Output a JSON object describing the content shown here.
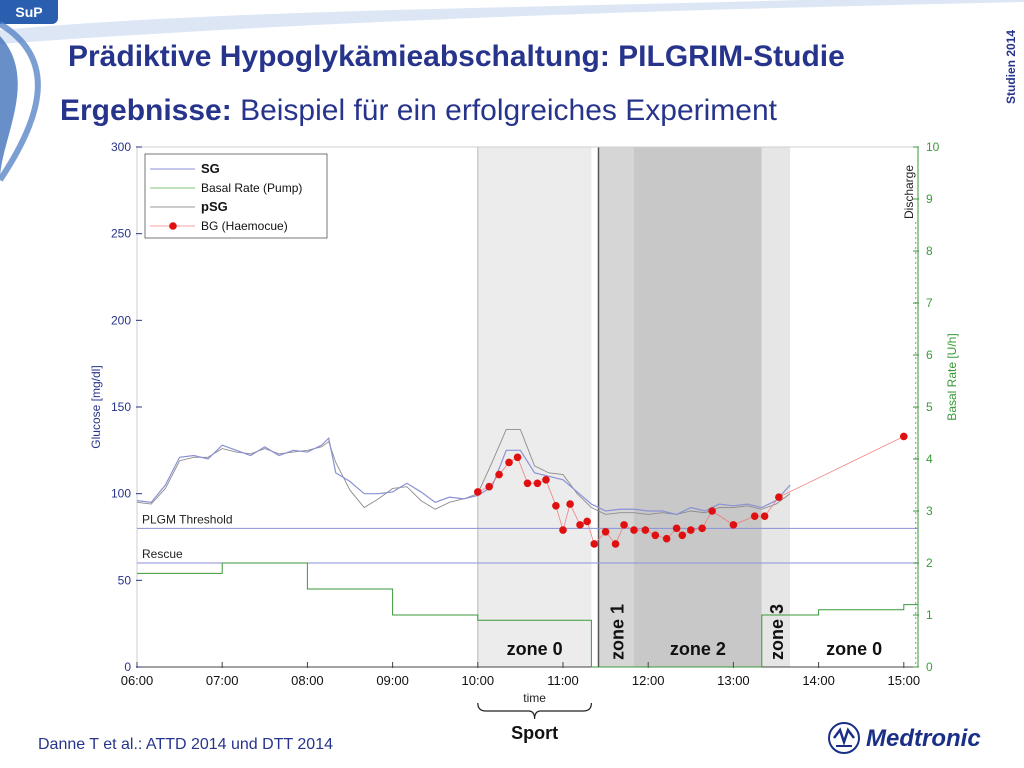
{
  "badge": "SuP",
  "title": "Prädiktive Hypoglykämieabschaltung: PILGRIM-Studie",
  "subtitle_bold": "Ergebnisse:",
  "subtitle_rest": " Beispiel für ein erfolgreiches Experiment",
  "side_label": "Studien 2014",
  "citation": "Danne T et al.: ATTD 2014 und DTT 2014",
  "logo_text": "Medtronic",
  "chart_data": {
    "type": "line",
    "x_unit": "time (hh:mm)",
    "xlabel": "time",
    "ylabel": "Glucose [mg/dl]",
    "y2label": "Basal Rate [U/h]",
    "ylim": [
      0,
      300
    ],
    "y2lim": [
      0,
      10
    ],
    "xlim": [
      "06:00",
      "15:10"
    ],
    "x_ticks": [
      "06:00",
      "07:00",
      "08:00",
      "09:00",
      "10:00",
      "11:00",
      "12:00",
      "13:00",
      "14:00",
      "15:00"
    ],
    "y_ticks": [
      "0",
      "50",
      "100",
      "150",
      "200",
      "250",
      "300"
    ],
    "y2_ticks": [
      "0",
      "1",
      "2",
      "3",
      "4",
      "5",
      "6",
      "7",
      "8",
      "9",
      "10"
    ],
    "legend": [
      {
        "label": "SG",
        "color": "#8a92d6",
        "style": "line",
        "bold": true
      },
      {
        "label": "Basal Rate (Pump)",
        "color": "#7fc47f",
        "style": "line",
        "bold": false
      },
      {
        "label": "pSG",
        "color": "#9a9a9a",
        "style": "line",
        "bold": true
      },
      {
        "label": "BG (Haemocue)",
        "color": "#e01010",
        "style": "marker",
        "bold": false
      }
    ],
    "legend_position": "top-left",
    "colors": {
      "sg": "#8a92d6",
      "psg": "#8c8c8c",
      "basal": "#3a9a3a",
      "bg": "#e01010",
      "threshold": "#8a92d6"
    },
    "thresholds": [
      {
        "label": "PLGM Threshold",
        "value": 80
      },
      {
        "label": "Rescue",
        "value": 60
      }
    ],
    "zones": [
      {
        "label": "zone 0",
        "start": "10:00",
        "end": "11:20",
        "shade": "#ececec",
        "vertical": false
      },
      {
        "label": "zone 1",
        "start": "11:25",
        "end": "11:50",
        "shade": "#d6d6d6",
        "vertical": true
      },
      {
        "label": "zone 2",
        "start": "11:50",
        "end": "13:20",
        "shade": "#c8c8c8",
        "vertical": false
      },
      {
        "label": "zone 3",
        "start": "13:20",
        "end": "13:40",
        "shade": "#e6e6e6",
        "vertical": true
      },
      {
        "label": "zone 0",
        "start": "13:40",
        "end": "15:10",
        "shade": "#ffffff",
        "vertical": false
      }
    ],
    "sport": {
      "label": "Sport",
      "start": "10:00",
      "end": "11:20"
    },
    "discharge": {
      "label": "Discharge",
      "x": "15:00"
    },
    "series": [
      {
        "name": "SG",
        "points": [
          [
            "06:00",
            96
          ],
          [
            "06:10",
            95
          ],
          [
            "06:20",
            105
          ],
          [
            "06:30",
            121
          ],
          [
            "06:40",
            122
          ],
          [
            "06:50",
            120
          ],
          [
            "07:00",
            128
          ],
          [
            "07:10",
            125
          ],
          [
            "07:20",
            122
          ],
          [
            "07:30",
            127
          ],
          [
            "07:40",
            122
          ],
          [
            "07:50",
            125
          ],
          [
            "08:00",
            124
          ],
          [
            "08:10",
            128
          ],
          [
            "08:15",
            132
          ],
          [
            "08:20",
            112
          ],
          [
            "08:30",
            107
          ],
          [
            "08:40",
            100
          ],
          [
            "08:50",
            100
          ],
          [
            "09:00",
            101
          ],
          [
            "09:10",
            106
          ],
          [
            "09:20",
            101
          ],
          [
            "09:30",
            95
          ],
          [
            "09:40",
            98
          ],
          [
            "09:50",
            97
          ],
          [
            "10:00",
            99
          ],
          [
            "10:10",
            104
          ],
          [
            "10:20",
            125
          ],
          [
            "10:30",
            125
          ],
          [
            "10:40",
            112
          ],
          [
            "10:50",
            110
          ],
          [
            "11:00",
            108
          ],
          [
            "11:10",
            101
          ],
          [
            "11:20",
            94
          ],
          [
            "11:30",
            90
          ],
          [
            "11:40",
            91
          ],
          [
            "11:50",
            91
          ],
          [
            "12:00",
            90
          ],
          [
            "12:10",
            90
          ],
          [
            "12:20",
            88
          ],
          [
            "12:30",
            92
          ],
          [
            "12:40",
            90
          ],
          [
            "12:50",
            94
          ],
          [
            "13:00",
            93
          ],
          [
            "13:10",
            94
          ],
          [
            "13:20",
            92
          ],
          [
            "13:30",
            96
          ],
          [
            "13:40",
            105
          ]
        ]
      },
      {
        "name": "pSG",
        "points": [
          [
            "06:00",
            95
          ],
          [
            "06:10",
            94
          ],
          [
            "06:20",
            103
          ],
          [
            "06:30",
            119
          ],
          [
            "06:40",
            121
          ],
          [
            "06:50",
            121
          ],
          [
            "07:00",
            126
          ],
          [
            "07:10",
            124
          ],
          [
            "07:20",
            123
          ],
          [
            "07:30",
            126
          ],
          [
            "07:40",
            123
          ],
          [
            "07:50",
            124
          ],
          [
            "08:00",
            125
          ],
          [
            "08:10",
            127
          ],
          [
            "08:15",
            130
          ],
          [
            "08:20",
            118
          ],
          [
            "08:30",
            102
          ],
          [
            "08:40",
            92
          ],
          [
            "08:50",
            97
          ],
          [
            "09:00",
            103
          ],
          [
            "09:10",
            104
          ],
          [
            "09:20",
            96
          ],
          [
            "09:30",
            91
          ],
          [
            "09:40",
            95
          ],
          [
            "09:50",
            97
          ],
          [
            "10:00",
            100
          ],
          [
            "10:10",
            118
          ],
          [
            "10:20",
            137
          ],
          [
            "10:30",
            137
          ],
          [
            "10:40",
            116
          ],
          [
            "10:50",
            112
          ],
          [
            "11:00",
            111
          ],
          [
            "11:10",
            100
          ],
          [
            "11:20",
            92
          ],
          [
            "11:30",
            88
          ],
          [
            "11:40",
            89
          ],
          [
            "11:50",
            89
          ],
          [
            "12:00",
            88
          ],
          [
            "12:10",
            89
          ],
          [
            "12:20",
            88
          ],
          [
            "12:30",
            90
          ],
          [
            "12:40",
            89
          ],
          [
            "12:50",
            92
          ],
          [
            "13:00",
            92
          ],
          [
            "13:10",
            93
          ],
          [
            "13:20",
            91
          ],
          [
            "13:30",
            94
          ],
          [
            "13:40",
            100
          ]
        ]
      },
      {
        "name": "BG (Haemocue)",
        "points": [
          [
            "10:00",
            101
          ],
          [
            "10:08",
            104
          ],
          [
            "10:15",
            111
          ],
          [
            "10:22",
            118
          ],
          [
            "10:28",
            121
          ],
          [
            "10:35",
            106
          ],
          [
            "10:42",
            106
          ],
          [
            "10:48",
            108
          ],
          [
            "10:55",
            93
          ],
          [
            "11:00",
            79
          ],
          [
            "11:05",
            94
          ],
          [
            "11:12",
            82
          ],
          [
            "11:17",
            84
          ],
          [
            "11:22",
            71
          ],
          [
            "11:30",
            78
          ],
          [
            "11:37",
            71
          ],
          [
            "11:43",
            82
          ],
          [
            "11:50",
            79
          ],
          [
            "11:58",
            79
          ],
          [
            "12:05",
            76
          ],
          [
            "12:13",
            74
          ],
          [
            "12:20",
            80
          ],
          [
            "12:24",
            76
          ],
          [
            "12:30",
            79
          ],
          [
            "12:38",
            80
          ],
          [
            "12:45",
            90
          ],
          [
            "13:00",
            82
          ],
          [
            "13:15",
            87
          ],
          [
            "13:22",
            87
          ],
          [
            "13:32",
            98
          ],
          [
            "15:00",
            133
          ]
        ]
      },
      {
        "name": "Basal Rate (Pump)",
        "steps": [
          [
            "06:00",
            1.8
          ],
          [
            "07:00",
            2.0
          ],
          [
            "08:00",
            1.5
          ],
          [
            "09:00",
            1.0
          ],
          [
            "10:00",
            0.9
          ],
          [
            "11:20",
            0.0
          ],
          [
            "13:20",
            1.0
          ],
          [
            "13:40",
            1.0
          ],
          [
            "14:00",
            1.1
          ],
          [
            "15:00",
            1.2
          ],
          [
            "15:10",
            1.2
          ]
        ]
      }
    ]
  }
}
